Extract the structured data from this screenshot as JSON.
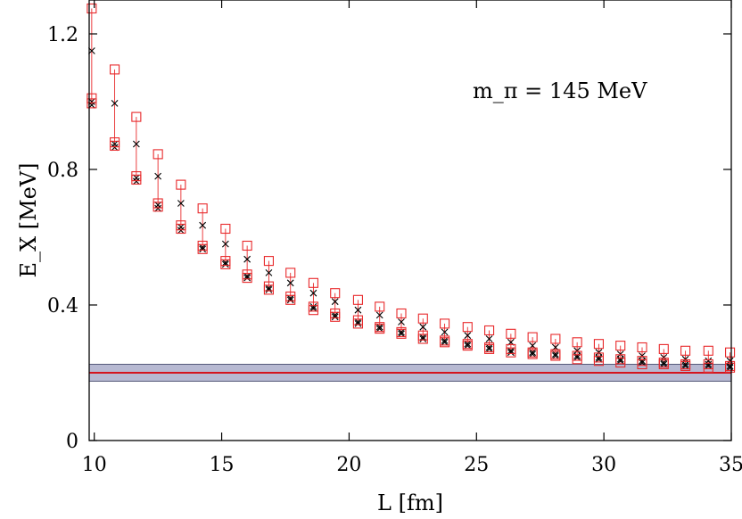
{
  "chart_data": {
    "type": "scatter",
    "xlabel": "L [fm]",
    "ylabel": "E_X [MeV]",
    "xlim": [
      9.8,
      35
    ],
    "ylim": [
      0,
      1.3
    ],
    "xticks": [
      10,
      15,
      20,
      25,
      30,
      35
    ],
    "yticks": [
      0,
      0.4,
      0.8,
      1.2
    ],
    "xtick_labels": [
      "10",
      "15",
      "20",
      "25",
      "30",
      "35"
    ],
    "ytick_labels": [
      "0",
      "0.4",
      "0.8",
      "1.2"
    ],
    "annotation": "m_π = 145 MeV",
    "grid": false,
    "x": [
      9.9,
      10.8,
      11.65,
      12.5,
      13.4,
      14.25,
      15.15,
      16.0,
      16.85,
      17.7,
      18.6,
      19.45,
      20.35,
      21.2,
      22.05,
      22.9,
      23.75,
      24.65,
      25.5,
      26.35,
      27.2,
      28.1,
      28.95,
      29.8,
      30.65,
      31.5,
      32.35,
      33.2,
      34.1,
      34.95
    ],
    "series": [
      {
        "marker": "cross",
        "color": "#000000",
        "values": [
          1.15,
          0.995,
          0.875,
          0.78,
          0.7,
          0.635,
          0.58,
          0.535,
          0.495,
          0.465,
          0.435,
          0.41,
          0.385,
          0.37,
          0.35,
          0.335,
          0.32,
          0.31,
          0.3,
          0.29,
          0.28,
          0.275,
          0.265,
          0.26,
          0.255,
          0.25,
          0.245,
          0.24,
          0.235,
          0.235
        ]
      },
      {
        "marker": "cross",
        "color": "#000000",
        "values": [
          0.99,
          0.865,
          0.765,
          0.685,
          0.62,
          0.565,
          0.52,
          0.48,
          0.445,
          0.415,
          0.39,
          0.365,
          0.345,
          0.33,
          0.315,
          0.3,
          0.29,
          0.28,
          0.27,
          0.26,
          0.255,
          0.25,
          0.245,
          0.24,
          0.235,
          0.23,
          0.225,
          0.22,
          0.22,
          0.215
        ]
      },
      {
        "marker": "cross",
        "color": "#000000",
        "values": [
          1.0,
          0.875,
          0.775,
          0.695,
          0.63,
          0.57,
          0.525,
          0.485,
          0.45,
          0.42,
          0.395,
          0.37,
          0.35,
          0.335,
          0.32,
          0.305,
          0.295,
          0.285,
          0.275,
          0.265,
          0.26,
          0.255,
          0.25,
          0.245,
          0.24,
          0.235,
          0.23,
          0.225,
          0.225,
          0.22
        ]
      },
      {
        "marker": "square",
        "color": "#e8292b",
        "values": [
          1.275,
          1.095,
          0.955,
          0.845,
          0.755,
          0.685,
          0.625,
          0.575,
          0.53,
          0.495,
          0.465,
          0.435,
          0.415,
          0.395,
          0.375,
          0.36,
          0.345,
          0.335,
          0.325,
          0.315,
          0.305,
          0.3,
          0.29,
          0.285,
          0.28,
          0.275,
          0.27,
          0.265,
          0.265,
          0.26
        ]
      },
      {
        "marker": "square",
        "color": "#e8292b",
        "values": [
          1.01,
          0.88,
          0.78,
          0.7,
          0.635,
          0.575,
          0.53,
          0.49,
          0.455,
          0.425,
          0.395,
          0.375,
          0.355,
          0.335,
          0.32,
          0.31,
          0.295,
          0.285,
          0.275,
          0.27,
          0.26,
          0.255,
          0.25,
          0.245,
          0.24,
          0.235,
          0.23,
          0.225,
          0.225,
          0.22
        ]
      },
      {
        "marker": "square",
        "color": "#e8292b",
        "values": [
          0.995,
          0.87,
          0.77,
          0.69,
          0.625,
          0.565,
          0.52,
          0.48,
          0.445,
          0.415,
          0.385,
          0.365,
          0.345,
          0.33,
          0.315,
          0.3,
          0.29,
          0.28,
          0.27,
          0.26,
          0.255,
          0.25,
          0.24,
          0.235,
          0.23,
          0.225,
          0.225,
          0.22,
          0.215,
          0.215
        ]
      }
    ],
    "band": {
      "center": 0.2,
      "low": 0.175,
      "high": 0.225,
      "fill": "#b7b9d2",
      "center_color": "#d4141e"
    },
    "colors": {
      "axis": "#000000",
      "cross": "#000000",
      "square": "#e8292b",
      "errorbar": "#e8292b"
    }
  }
}
